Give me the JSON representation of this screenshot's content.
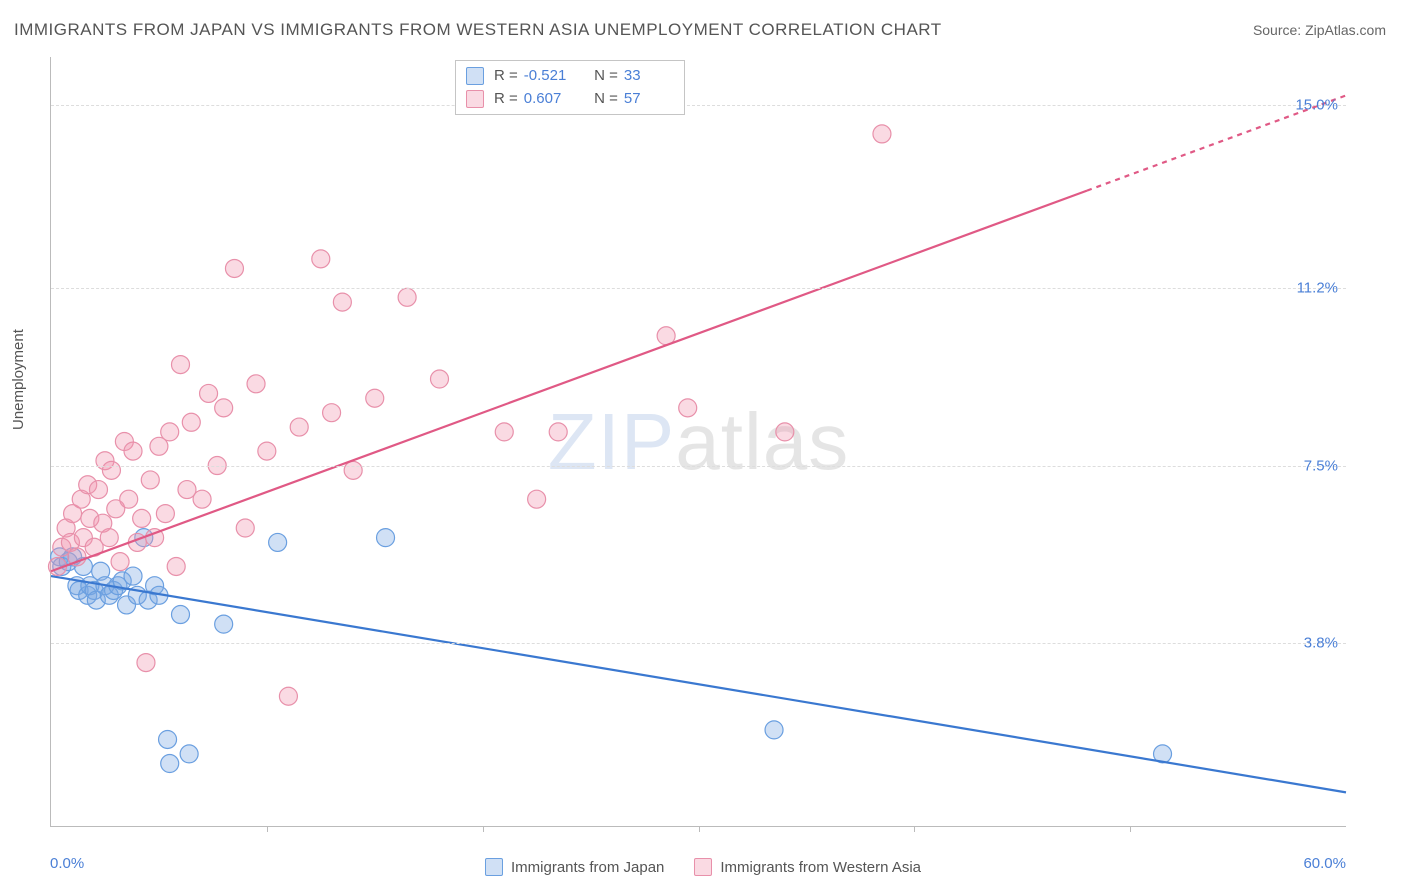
{
  "title": "IMMIGRANTS FROM JAPAN VS IMMIGRANTS FROM WESTERN ASIA UNEMPLOYMENT CORRELATION CHART",
  "source_label": "Source: ",
  "source_value": "ZipAtlas.com",
  "ylabel": "Unemployment",
  "watermark_a": "ZIP",
  "watermark_b": "atlas",
  "chart": {
    "type": "scatter-correlation",
    "xlim": [
      0.0,
      60.0
    ],
    "ylim": [
      0.0,
      16.0
    ],
    "x_ticks_labels": [
      "0.0%",
      "60.0%"
    ],
    "y_ticks": [
      {
        "v": 3.8,
        "label": "3.8%"
      },
      {
        "v": 7.5,
        "label": "7.5%"
      },
      {
        "v": 11.2,
        "label": "11.2%"
      },
      {
        "v": 15.0,
        "label": "15.0%"
      }
    ],
    "x_minor_ticks": [
      10,
      20,
      30,
      40,
      50
    ],
    "grid_color": "#dddddd",
    "axis_color": "#bbbbbb",
    "background_color": "#ffffff",
    "tick_label_color": "#4a7fd6",
    "series": [
      {
        "name": "Immigrants from Japan",
        "color_fill": "rgba(120,165,225,0.35)",
        "color_stroke": "#6a9fe0",
        "line_color": "#3a78d0",
        "line_width": 2.2,
        "R": -0.521,
        "N": 33,
        "trend": {
          "x1": 0,
          "y1": 5.2,
          "x2": 60,
          "y2": 0.7,
          "dash_from": 60
        },
        "points": [
          [
            0.4,
            5.6
          ],
          [
            0.5,
            5.4
          ],
          [
            0.8,
            5.5
          ],
          [
            1.0,
            5.6
          ],
          [
            1.2,
            5.0
          ],
          [
            1.3,
            4.9
          ],
          [
            1.5,
            5.4
          ],
          [
            1.7,
            4.8
          ],
          [
            1.8,
            5.0
          ],
          [
            2.0,
            4.9
          ],
          [
            2.1,
            4.7
          ],
          [
            2.3,
            5.3
          ],
          [
            2.5,
            5.0
          ],
          [
            2.7,
            4.8
          ],
          [
            2.9,
            4.9
          ],
          [
            3.1,
            5.0
          ],
          [
            3.3,
            5.1
          ],
          [
            3.5,
            4.6
          ],
          [
            3.8,
            5.2
          ],
          [
            4.0,
            4.8
          ],
          [
            4.3,
            6.0
          ],
          [
            4.5,
            4.7
          ],
          [
            4.8,
            5.0
          ],
          [
            5.0,
            4.8
          ],
          [
            5.4,
            1.8
          ],
          [
            5.5,
            1.3
          ],
          [
            6.0,
            4.4
          ],
          [
            6.4,
            1.5
          ],
          [
            8.0,
            4.2
          ],
          [
            10.5,
            5.9
          ],
          [
            15.5,
            6.0
          ],
          [
            33.5,
            2.0
          ],
          [
            51.5,
            1.5
          ]
        ]
      },
      {
        "name": "Immigrants from Western Asia",
        "color_fill": "rgba(240,150,175,0.35)",
        "color_stroke": "#e890aa",
        "line_color": "#e05985",
        "line_width": 2.2,
        "R": 0.607,
        "N": 57,
        "trend": {
          "x1": 0,
          "y1": 5.3,
          "x2": 60,
          "y2": 15.2,
          "dash_from": 48
        },
        "points": [
          [
            0.3,
            5.4
          ],
          [
            0.5,
            5.8
          ],
          [
            0.7,
            6.2
          ],
          [
            0.9,
            5.9
          ],
          [
            1.0,
            6.5
          ],
          [
            1.2,
            5.6
          ],
          [
            1.4,
            6.8
          ],
          [
            1.5,
            6.0
          ],
          [
            1.7,
            7.1
          ],
          [
            1.8,
            6.4
          ],
          [
            2.0,
            5.8
          ],
          [
            2.2,
            7.0
          ],
          [
            2.4,
            6.3
          ],
          [
            2.5,
            7.6
          ],
          [
            2.7,
            6.0
          ],
          [
            2.8,
            7.4
          ],
          [
            3.0,
            6.6
          ],
          [
            3.2,
            5.5
          ],
          [
            3.4,
            8.0
          ],
          [
            3.6,
            6.8
          ],
          [
            3.8,
            7.8
          ],
          [
            4.0,
            5.9
          ],
          [
            4.2,
            6.4
          ],
          [
            4.4,
            3.4
          ],
          [
            4.6,
            7.2
          ],
          [
            4.8,
            6.0
          ],
          [
            5.0,
            7.9
          ],
          [
            5.3,
            6.5
          ],
          [
            5.5,
            8.2
          ],
          [
            5.8,
            5.4
          ],
          [
            6.0,
            9.6
          ],
          [
            6.3,
            7.0
          ],
          [
            6.5,
            8.4
          ],
          [
            7.0,
            6.8
          ],
          [
            7.3,
            9.0
          ],
          [
            7.7,
            7.5
          ],
          [
            8.0,
            8.7
          ],
          [
            8.5,
            11.6
          ],
          [
            9.0,
            6.2
          ],
          [
            9.5,
            9.2
          ],
          [
            10.0,
            7.8
          ],
          [
            11.0,
            2.7
          ],
          [
            11.5,
            8.3
          ],
          [
            12.5,
            11.8
          ],
          [
            13.0,
            8.6
          ],
          [
            13.5,
            10.9
          ],
          [
            14.0,
            7.4
          ],
          [
            15.0,
            8.9
          ],
          [
            16.5,
            11.0
          ],
          [
            18.0,
            9.3
          ],
          [
            21.0,
            8.2
          ],
          [
            22.5,
            6.8
          ],
          [
            23.5,
            8.2
          ],
          [
            28.5,
            10.2
          ],
          [
            29.5,
            8.7
          ],
          [
            34.0,
            8.2
          ],
          [
            38.5,
            14.4
          ]
        ]
      }
    ]
  },
  "legend_bottom": [
    {
      "swatch_fill": "rgba(120,165,225,0.35)",
      "swatch_border": "#6a9fe0",
      "label": "Immigrants from Japan"
    },
    {
      "swatch_fill": "rgba(240,150,175,0.35)",
      "swatch_border": "#e890aa",
      "label": "Immigrants from Western Asia"
    }
  ],
  "stats_box": {
    "rows": [
      {
        "swatch_fill": "rgba(120,165,225,0.35)",
        "swatch_border": "#6a9fe0",
        "R": "-0.521",
        "N": "33"
      },
      {
        "swatch_fill": "rgba(240,150,175,0.35)",
        "swatch_border": "#e890aa",
        "R": "0.607",
        "N": "57"
      }
    ],
    "R_label": "R =",
    "N_label": "N ="
  }
}
